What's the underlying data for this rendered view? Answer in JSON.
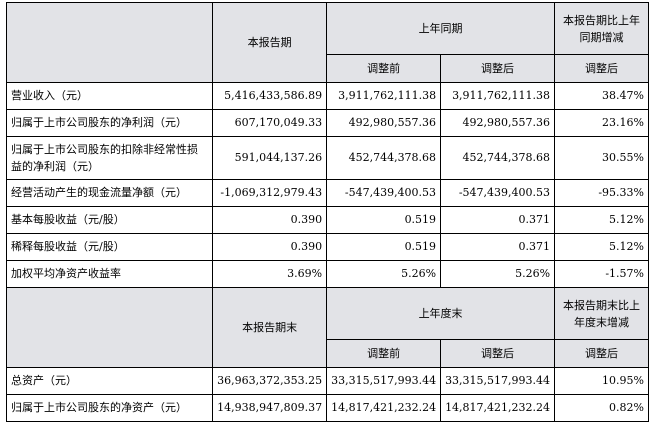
{
  "table1": {
    "header": {
      "current": "本报告期",
      "prior_group": "上年同期",
      "change": "本报告期比上年同期增减",
      "before": "调整前",
      "after": "调整后",
      "change_sub": "调整后"
    },
    "rows": [
      {
        "label": "营业收入（元）",
        "current": "5,416,433,586.89",
        "before": "3,911,762,111.38",
        "after": "3,911,762,111.38",
        "change": "38.47%"
      },
      {
        "label": "归属于上市公司股东的净利润（元）",
        "current": "607,170,049.33",
        "before": "492,980,557.36",
        "after": "492,980,557.36",
        "change": "23.16%"
      },
      {
        "label": "归属于上市公司股东的扣除非经常性损益的净利润（元）",
        "current": "591,044,137.26",
        "before": "452,744,378.68",
        "after": "452,744,378.68",
        "change": "30.55%"
      },
      {
        "label": "经营活动产生的现金流量净额（元）",
        "current": "-1,069,312,979.43",
        "before": "-547,439,400.53",
        "after": "-547,439,400.53",
        "change": "-95.33%"
      },
      {
        "label": "基本每股收益（元/股）",
        "current": "0.390",
        "before": "0.519",
        "after": "0.371",
        "change": "5.12%"
      },
      {
        "label": "稀释每股收益（元/股）",
        "current": "0.390",
        "before": "0.519",
        "after": "0.371",
        "change": "5.12%"
      },
      {
        "label": "加权平均净资产收益率",
        "current": "3.69%",
        "before": "5.26%",
        "after": "5.26%",
        "change": "-1.57%"
      }
    ]
  },
  "table2": {
    "header": {
      "current": "本报告期末",
      "prior_group": "上年度末",
      "change": "本报告期末比上年度末增减",
      "before": "调整前",
      "after": "调整后",
      "change_sub": "调整后"
    },
    "rows": [
      {
        "label": "总资产（元）",
        "current": "36,963,372,353.25",
        "before": "33,315,517,993.44",
        "after": "33,315,517,993.44",
        "change": "10.95%"
      },
      {
        "label": "归属于上市公司股东的净资产（元）",
        "current": "14,938,947,809.37",
        "before": "14,817,421,232.24",
        "after": "14,817,421,232.24",
        "change": "0.82%"
      }
    ]
  }
}
